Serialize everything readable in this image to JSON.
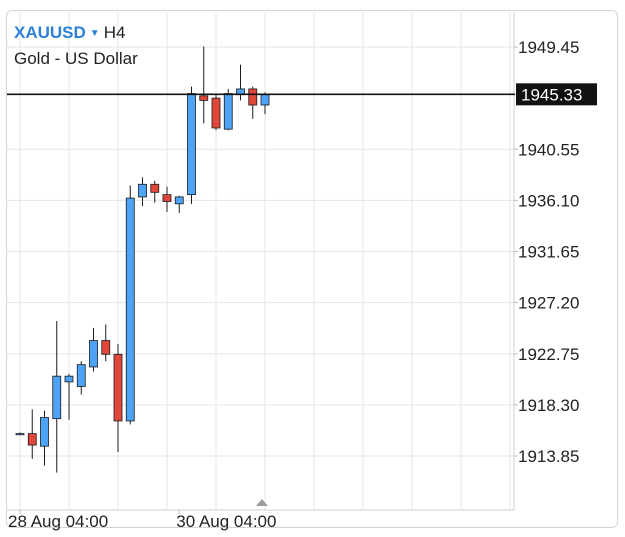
{
  "header": {
    "symbol": "XAUUSD",
    "timeframe": "H4",
    "instrument_name": "Gold - US Dollar"
  },
  "colors": {
    "bull": "#4da3f5",
    "bear": "#e0473a",
    "outline": "#1b1b1b",
    "grid": "#e6e6e6",
    "price_line": "#111111",
    "price_label_bg": "#111111",
    "price_label_text": "#ffffff",
    "accent": "#2e7fd6"
  },
  "chart_data": {
    "type": "candlestick",
    "symbol": "XAUUSD",
    "timeframe": "H4",
    "title": "Gold - US Dollar",
    "current_price": 1945.33,
    "current_price_label": "1945.33",
    "y_ticks": [
      1949.45,
      1940.55,
      1936.1,
      1931.65,
      1927.2,
      1922.75,
      1918.3,
      1913.85
    ],
    "y_tick_labels": [
      "1949.45",
      "1940.55",
      "1936.10",
      "1931.65",
      "1927.20",
      "1922.75",
      "1918.30",
      "1913.85"
    ],
    "ylim": [
      1909.3,
      1953.8
    ],
    "x_tick_labels": [
      {
        "index": 0,
        "label": "28 Aug 04:00"
      },
      {
        "index": 13,
        "label": "30 Aug 04:00"
      }
    ],
    "grid": true,
    "candles": [
      {
        "open": 1915.8,
        "high": 1915.9,
        "low": 1915.7,
        "close": 1915.8
      },
      {
        "open": 1915.8,
        "high": 1917.9,
        "low": 1913.6,
        "close": 1914.8
      },
      {
        "open": 1914.7,
        "high": 1917.8,
        "low": 1913.0,
        "close": 1917.2
      },
      {
        "open": 1917.1,
        "high": 1925.6,
        "low": 1912.4,
        "close": 1920.8
      },
      {
        "open": 1920.3,
        "high": 1921.0,
        "low": 1917.0,
        "close": 1920.8
      },
      {
        "open": 1919.9,
        "high": 1922.1,
        "low": 1919.2,
        "close": 1921.8
      },
      {
        "open": 1921.6,
        "high": 1925.0,
        "low": 1921.2,
        "close": 1923.9
      },
      {
        "open": 1923.9,
        "high": 1925.3,
        "low": 1922.1,
        "close": 1922.7
      },
      {
        "open": 1922.7,
        "high": 1923.6,
        "low": 1914.2,
        "close": 1916.9
      },
      {
        "open": 1916.9,
        "high": 1937.4,
        "low": 1916.6,
        "close": 1936.3
      },
      {
        "open": 1936.4,
        "high": 1938.1,
        "low": 1935.6,
        "close": 1937.5
      },
      {
        "open": 1937.5,
        "high": 1937.8,
        "low": 1935.9,
        "close": 1936.8
      },
      {
        "open": 1936.6,
        "high": 1937.3,
        "low": 1935.1,
        "close": 1936.0
      },
      {
        "open": 1935.8,
        "high": 1936.5,
        "low": 1935.0,
        "close": 1936.4
      },
      {
        "open": 1936.6,
        "high": 1946.0,
        "low": 1935.8,
        "close": 1945.4
      },
      {
        "open": 1945.2,
        "high": 1949.5,
        "low": 1942.8,
        "close": 1944.8
      },
      {
        "open": 1945.0,
        "high": 1945.3,
        "low": 1942.2,
        "close": 1942.4
      },
      {
        "open": 1942.3,
        "high": 1945.8,
        "low": 1942.2,
        "close": 1945.4
      },
      {
        "open": 1945.3,
        "high": 1947.9,
        "low": 1944.8,
        "close": 1945.8
      },
      {
        "open": 1945.8,
        "high": 1946.0,
        "low": 1943.2,
        "close": 1944.4
      },
      {
        "open": 1944.4,
        "high": 1945.5,
        "low": 1943.6,
        "close": 1945.3
      }
    ]
  }
}
